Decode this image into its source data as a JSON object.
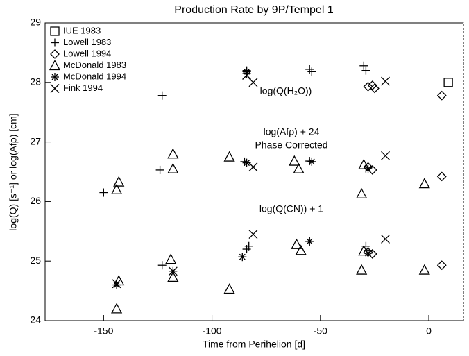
{
  "chart_data": {
    "type": "scatter",
    "title": "Production Rate by 9P/Tempel 1",
    "x_label": "Time from Perihelion [d]",
    "y_label": "log(Q) [s⁻¹] or log(Afρ) [cm]",
    "annotations": [
      "log(Q(H₂O))",
      "log(Afρ) + 24",
      "Phase Corrected",
      "log(Q(CN)) + 1"
    ],
    "xlim": [
      -177,
      16
    ],
    "ylim": [
      24,
      29
    ],
    "xticks": [
      -150,
      -100,
      -50,
      0
    ],
    "yticks": [
      24,
      25,
      26,
      27,
      28,
      29
    ],
    "legend": "upper left",
    "series": [
      {
        "name": "IUE 1983",
        "marker": "square",
        "color": "#000000",
        "x": [
          9
        ],
        "values": [
          28.0
        ]
      },
      {
        "name": "Lowell 1983",
        "marker": "plus",
        "color": "#000000",
        "x": [
          -123,
          -84,
          -84,
          -55,
          -54,
          -30,
          -29,
          -150,
          -124,
          -85,
          -55,
          -29,
          -123,
          -84,
          -83,
          -55,
          -29,
          -28
        ],
        "values": [
          27.78,
          28.2,
          28.15,
          28.22,
          28.18,
          28.28,
          28.2,
          26.15,
          26.53,
          26.67,
          26.68,
          26.55,
          24.93,
          25.2,
          25.25,
          25.33,
          25.25,
          25.18
        ]
      },
      {
        "name": "Lowell 1994",
        "marker": "diamond",
        "color": "#000000",
        "x": [
          -28,
          -26,
          -25,
          6,
          -28,
          -26,
          6,
          -28,
          -26,
          6
        ],
        "values": [
          27.93,
          27.95,
          27.9,
          27.78,
          26.58,
          26.53,
          26.42,
          25.15,
          25.12,
          24.93
        ]
      },
      {
        "name": "McDonald 1983",
        "marker": "triangle",
        "color": "#000000",
        "x": [
          -144,
          -143,
          -118,
          -118,
          -92,
          -62,
          -60,
          -31,
          -30,
          -2,
          -144,
          -143,
          -119,
          -118,
          -92,
          -61,
          -59,
          -31,
          -30,
          -2
        ],
        "values": [
          26.2,
          26.33,
          26.8,
          26.55,
          26.75,
          26.68,
          26.55,
          26.13,
          26.62,
          26.3,
          24.2,
          24.67,
          25.03,
          24.73,
          24.53,
          25.28,
          25.18,
          24.85,
          25.17,
          24.85
        ]
      },
      {
        "name": "McDonald 1994",
        "marker": "asterisk",
        "color": "#000000",
        "x": [
          -84,
          -84,
          -54,
          -28,
          -144,
          -118,
          -86,
          -55,
          -28
        ],
        "values": [
          28.18,
          26.65,
          26.67,
          26.55,
          24.6,
          24.83,
          25.07,
          25.33,
          25.13
        ]
      },
      {
        "name": "Fink 1994",
        "marker": "x",
        "color": "#000000",
        "x": [
          -84,
          -81,
          -20,
          -81,
          -20,
          -144,
          -118,
          -81,
          -20
        ],
        "values": [
          28.12,
          28.0,
          28.02,
          26.58,
          26.77,
          24.62,
          24.83,
          25.45,
          25.37
        ]
      }
    ]
  }
}
